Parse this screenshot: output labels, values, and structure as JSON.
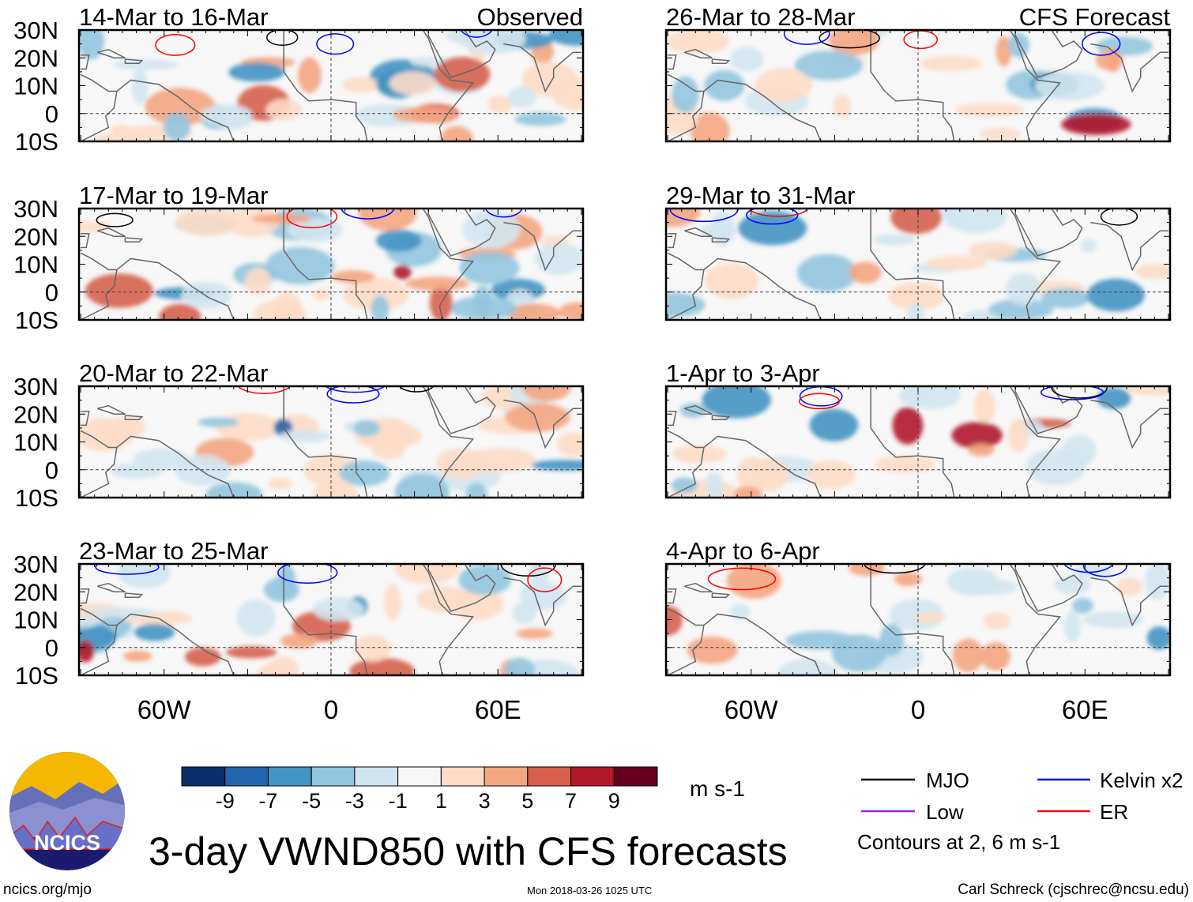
{
  "panels": [
    {
      "title": "14-Mar to 16-Mar",
      "subtitle": "Observed"
    },
    {
      "title": "17-Mar to 19-Mar",
      "subtitle": ""
    },
    {
      "title": "20-Mar to 22-Mar",
      "subtitle": ""
    },
    {
      "title": "23-Mar to 25-Mar",
      "subtitle": ""
    },
    {
      "title": "26-Mar to 28-Mar",
      "subtitle": "CFS Forecast"
    },
    {
      "title": "29-Mar to 31-Mar",
      "subtitle": ""
    },
    {
      "title": "1-Apr to 3-Apr",
      "subtitle": ""
    },
    {
      "title": "4-Apr to 6-Apr",
      "subtitle": ""
    }
  ],
  "y_axis_labels": [
    "30N",
    "20N",
    "10N",
    "0",
    "10S"
  ],
  "x_axis_labels": [
    "60W",
    "0",
    "60E"
  ],
  "colorbar": {
    "colors": [
      "#08306b",
      "#2166ac",
      "#4393c3",
      "#92c5de",
      "#d1e5f0",
      "#f7f7f7",
      "#fddbc7",
      "#f4a582",
      "#d6604d",
      "#b2182b",
      "#67001f"
    ],
    "labels": [
      "-9",
      "-7",
      "-5",
      "-3",
      "-1",
      "1",
      "3",
      "5",
      "7",
      "9"
    ],
    "units": "m s-1"
  },
  "legend": {
    "items": [
      {
        "label": "MJO",
        "color": "#000000"
      },
      {
        "label": "Kelvin x2",
        "color": "#0000ff"
      },
      {
        "label": "Low",
        "color": "#a020f0"
      },
      {
        "label": "ER",
        "color": "#ff0000"
      }
    ],
    "contour_note": "Contours at 2, 6 m s-1"
  },
  "title": "3-day VWND850 with CFS forecasts",
  "footer": {
    "left": "ncics.org/mjo",
    "center": "Mon 2018-03-26 1025 UTC",
    "right": "Carl Schreck (cjschrec@ncsu.edu)"
  },
  "logo": {
    "text": "NCICS"
  }
}
